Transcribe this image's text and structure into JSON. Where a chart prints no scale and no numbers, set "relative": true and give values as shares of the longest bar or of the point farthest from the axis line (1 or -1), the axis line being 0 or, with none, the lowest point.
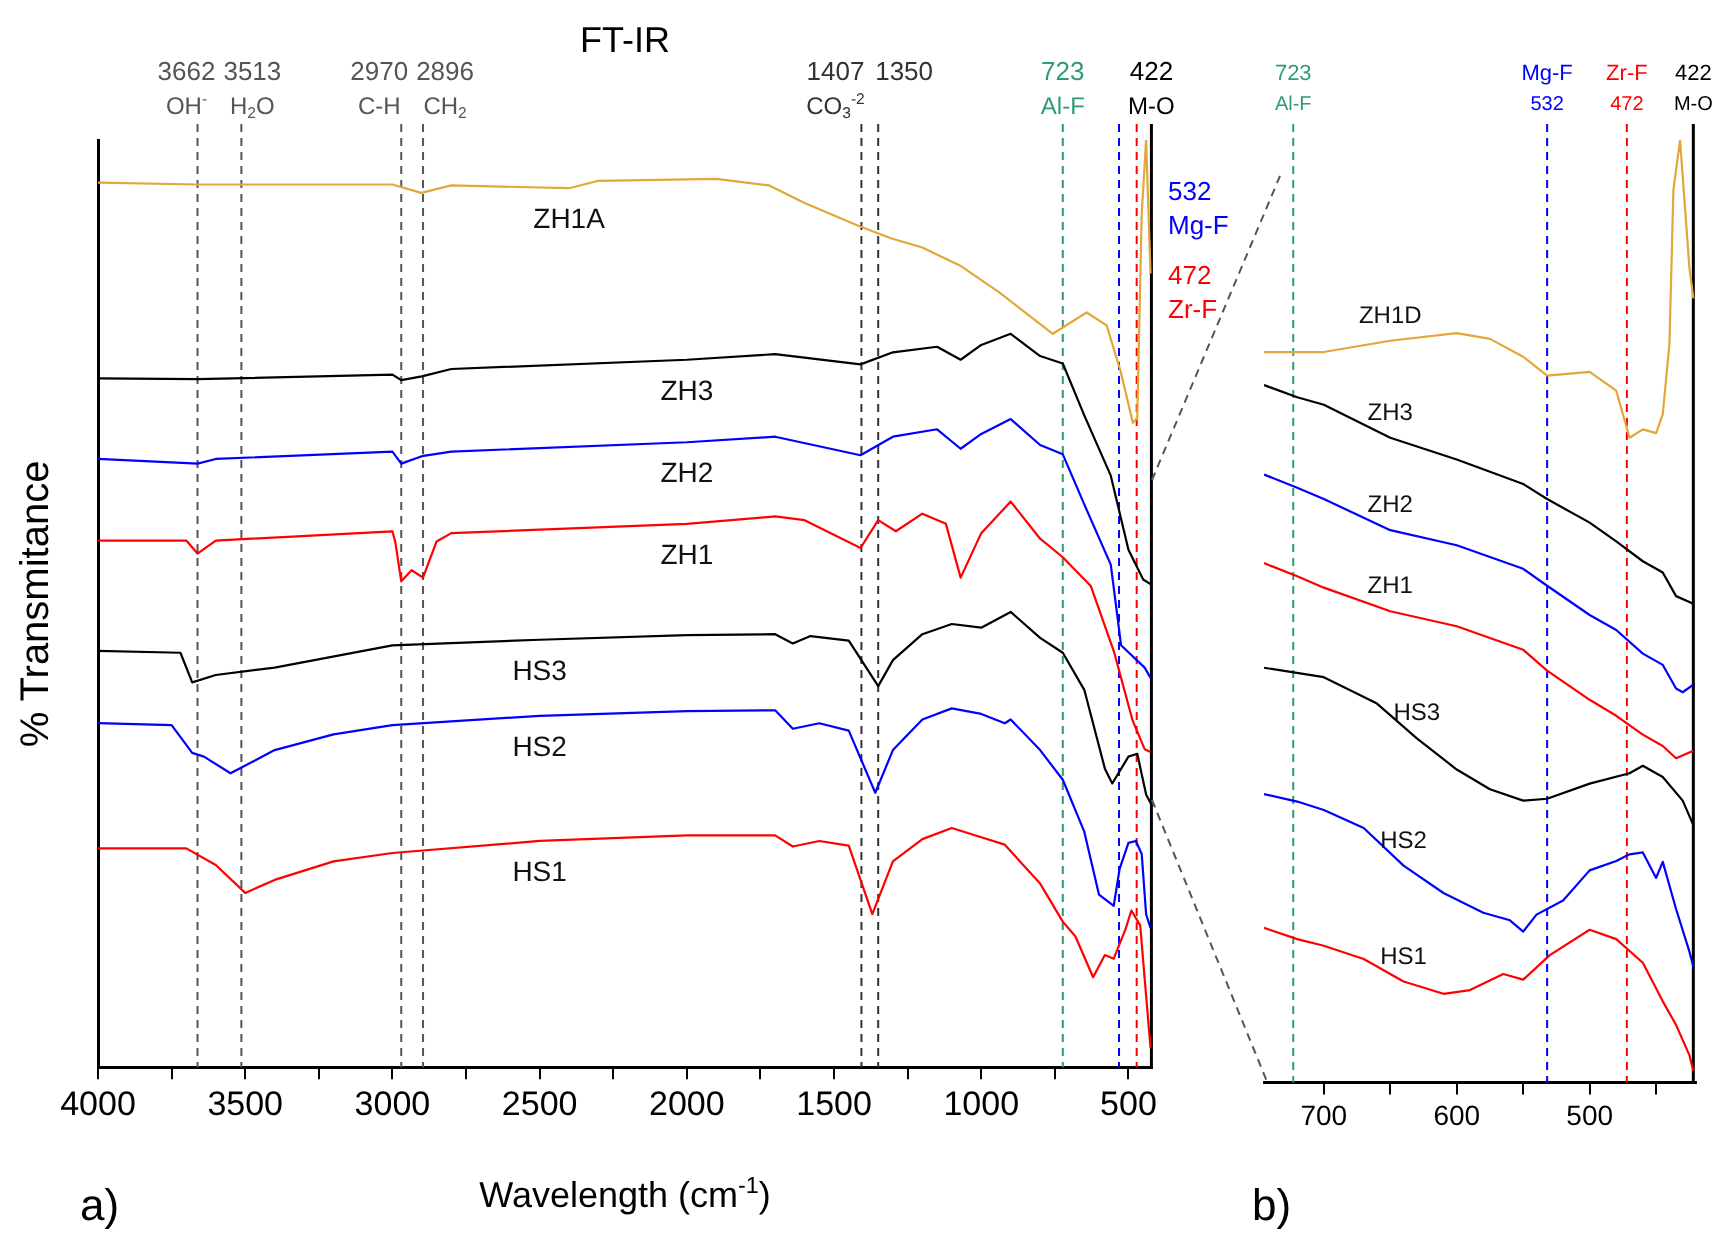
{
  "chart_data": [
    {
      "type": "line",
      "title": "FT-IR",
      "xlabel": "Wavelength (cm$^{-1}$)",
      "ylabel": "% Transmitance",
      "relative": true,
      "grid": false,
      "legend": false,
      "xlim": [
        4000,
        420
      ],
      "xticks": [
        4000,
        {
          "value": 3750,
          "label": null
        },
        3500,
        {
          "value": 3250,
          "label": null
        },
        3000,
        {
          "value": 2750,
          "label": null
        },
        2500,
        {
          "value": 2250,
          "label": null
        },
        2000,
        {
          "value": 1750,
          "label": null
        },
        1500,
        {
          "value": 1250,
          "label": null
        },
        1000,
        {
          "value": 750,
          "label": null
        },
        500
      ],
      "series": [
        {
          "name": "ZH1A",
          "color": "#e2a73b",
          "x": [
            4000,
            3662,
            3000,
            2902,
            2800,
            2400,
            2300,
            1900,
            1720,
            1600,
            1422,
            1307,
            1200,
            1069,
            940,
            757,
            642,
            574,
            527,
            485,
            470,
            455,
            440,
            425
          ],
          "values": [
            0.954,
            0.952,
            0.952,
            0.943,
            0.951,
            0.948,
            0.956,
            0.958,
            0.951,
            0.932,
            0.908,
            0.894,
            0.884,
            0.864,
            0.836,
            0.791,
            0.814,
            0.8,
            0.751,
            0.695,
            0.7,
            0.92,
            1.0,
            0.856
          ]
        },
        {
          "name": "ZH3",
          "color": "#000000",
          "x": [
            4000,
            3662,
            3000,
            2970,
            2900,
            2800,
            2000,
            1700,
            1410,
            1300,
            1150,
            1070,
            1000,
            900,
            800,
            723,
            650,
            560,
            500,
            450,
            425
          ],
          "values": [
            0.743,
            0.742,
            0.747,
            0.741,
            0.745,
            0.753,
            0.763,
            0.769,
            0.758,
            0.771,
            0.777,
            0.763,
            0.779,
            0.791,
            0.767,
            0.759,
            0.703,
            0.638,
            0.558,
            0.526,
            0.521
          ]
        },
        {
          "name": "ZH2",
          "color": "#0000ff",
          "x": [
            4000,
            3662,
            3600,
            3000,
            2970,
            2900,
            2800,
            2000,
            1700,
            1410,
            1300,
            1150,
            1070,
            1000,
            900,
            800,
            723,
            650,
            560,
            525,
            445,
            425
          ],
          "values": [
            0.656,
            0.651,
            0.656,
            0.664,
            0.651,
            0.659,
            0.664,
            0.674,
            0.68,
            0.66,
            0.68,
            0.688,
            0.667,
            0.683,
            0.699,
            0.671,
            0.661,
            0.607,
            0.542,
            0.455,
            0.431,
            0.42
          ]
        },
        {
          "name": "ZH1",
          "color": "#ff0000",
          "x": [
            4000,
            3700,
            3662,
            3600,
            3000,
            2990,
            2970,
            2935,
            2896,
            2850,
            2800,
            2000,
            1700,
            1600,
            1410,
            1350,
            1290,
            1200,
            1120,
            1070,
            1000,
            900,
            800,
            723,
            628,
            549,
            486,
            445,
            425
          ],
          "values": [
            0.568,
            0.568,
            0.554,
            0.568,
            0.578,
            0.566,
            0.524,
            0.536,
            0.528,
            0.567,
            0.576,
            0.586,
            0.594,
            0.59,
            0.56,
            0.59,
            0.578,
            0.597,
            0.586,
            0.528,
            0.576,
            0.61,
            0.57,
            0.55,
            0.519,
            0.448,
            0.374,
            0.343,
            0.34
          ]
        },
        {
          "name": "HS3",
          "color": "#000000",
          "x": [
            4000,
            3720,
            3680,
            3600,
            3400,
            3000,
            2500,
            2000,
            1700,
            1640,
            1580,
            1450,
            1350,
            1300,
            1200,
            1100,
            1000,
            900,
            800,
            723,
            650,
            580,
            555,
            500,
            470,
            440,
            425
          ],
          "values": [
            0.449,
            0.447,
            0.415,
            0.423,
            0.431,
            0.455,
            0.461,
            0.466,
            0.467,
            0.457,
            0.465,
            0.46,
            0.411,
            0.439,
            0.467,
            0.478,
            0.474,
            0.491,
            0.463,
            0.447,
            0.407,
            0.322,
            0.306,
            0.335,
            0.338,
            0.294,
            0.285
          ]
        },
        {
          "name": "HS2",
          "color": "#0000ff",
          "x": [
            4000,
            3750,
            3680,
            3640,
            3550,
            3400,
            3200,
            3000,
            2500,
            2000,
            1700,
            1640,
            1550,
            1450,
            1360,
            1300,
            1200,
            1100,
            1000,
            920,
            900,
            800,
            723,
            650,
            600,
            550,
            530,
            500,
            475,
            455,
            440,
            425
          ],
          "values": [
            0.371,
            0.369,
            0.339,
            0.335,
            0.317,
            0.342,
            0.359,
            0.369,
            0.379,
            0.384,
            0.385,
            0.365,
            0.371,
            0.363,
            0.296,
            0.342,
            0.375,
            0.387,
            0.381,
            0.371,
            0.375,
            0.342,
            0.31,
            0.254,
            0.186,
            0.174,
            0.214,
            0.242,
            0.244,
            0.23,
            0.165,
            0.15
          ]
        },
        {
          "name": "HS1",
          "color": "#ff0000",
          "x": [
            4000,
            3700,
            3600,
            3500,
            3400,
            3200,
            3000,
            2500,
            2000,
            1700,
            1640,
            1550,
            1450,
            1370,
            1300,
            1200,
            1100,
            1000,
            920,
            800,
            723,
            680,
            620,
            580,
            550,
            510,
            490,
            460,
            440,
            425
          ],
          "values": [
            0.236,
            0.236,
            0.218,
            0.188,
            0.202,
            0.222,
            0.231,
            0.244,
            0.25,
            0.25,
            0.238,
            0.244,
            0.239,
            0.165,
            0.222,
            0.246,
            0.258,
            0.248,
            0.24,
            0.198,
            0.157,
            0.141,
            0.097,
            0.121,
            0.117,
            0.149,
            0.169,
            0.153,
            0.077,
            0.021
          ]
        }
      ],
      "ref_lines": [
        {
          "axis": "x",
          "value": 3662,
          "label": "3662\nOH$^{-}$",
          "color": "#555555",
          "line_style": "dashed"
        },
        {
          "axis": "x",
          "value": 3513,
          "label": "3513\nH$_{2}$O",
          "color": "#555555",
          "line_style": "dashed"
        },
        {
          "axis": "x",
          "value": 2970,
          "label": "2970\nC-H",
          "color": "#555555",
          "line_style": "dashed"
        },
        {
          "axis": "x",
          "value": 2896,
          "label": "2896\nCH$_{2}$",
          "color": "#555555",
          "line_style": "dashed"
        },
        {
          "axis": "x",
          "value": 1407,
          "label": "1407\nCO$_{3}$$^{-2}$",
          "color": "#333333",
          "line_style": "dashed"
        },
        {
          "axis": "x",
          "value": 1350,
          "label": "1350",
          "color": "#333333",
          "line_style": "dashed"
        },
        {
          "axis": "x",
          "value": 723,
          "label": "723\nAl-F",
          "color": "#2e9b74",
          "line_style": "dashed"
        },
        {
          "axis": "x",
          "value": 532,
          "label": "532\nMg-F",
          "color": "#0000ff",
          "line_style": "dashed"
        },
        {
          "axis": "x",
          "value": 472,
          "label": "472\nZr-F",
          "color": "#ff0000",
          "line_style": "dashed"
        },
        {
          "axis": "x",
          "value": 422,
          "label": "422\nM-O",
          "color": "#000000",
          "line_style": "solid"
        }
      ],
      "annotations": [
        "a)"
      ]
    },
    {
      "type": "line",
      "relative": true,
      "grid": false,
      "legend": false,
      "xlim": [
        745,
        420
      ],
      "xticks": [
        700,
        {
          "value": 650,
          "label": null
        },
        600,
        {
          "value": 550,
          "label": null
        },
        500,
        {
          "value": 450,
          "label": null
        }
      ],
      "series": [
        {
          "name": "ZH1D",
          "color": "#e2a73b",
          "x": [
            745,
            700,
            650,
            600,
            575,
            550,
            532,
            500,
            480,
            470,
            460,
            450,
            445,
            440,
            437,
            432,
            425,
            422
          ],
          "values": [
            0.775,
            0.775,
            0.787,
            0.795,
            0.789,
            0.77,
            0.75,
            0.754,
            0.734,
            0.684,
            0.693,
            0.689,
            0.709,
            0.783,
            0.947,
            1.0,
            0.865,
            0.832
          ]
        },
        {
          "name": "ZH3",
          "color": "#000000",
          "x": [
            745,
            720,
            700,
            650,
            600,
            550,
            532,
            500,
            480,
            460,
            445,
            435,
            422
          ],
          "values": [
            0.74,
            0.727,
            0.719,
            0.684,
            0.661,
            0.635,
            0.619,
            0.594,
            0.574,
            0.553,
            0.541,
            0.516,
            0.508
          ]
        },
        {
          "name": "ZH2",
          "color": "#0000ff",
          "x": [
            745,
            720,
            700,
            650,
            600,
            550,
            532,
            500,
            480,
            460,
            445,
            435,
            430,
            422
          ],
          "values": [
            0.645,
            0.631,
            0.619,
            0.586,
            0.57,
            0.545,
            0.527,
            0.496,
            0.48,
            0.455,
            0.443,
            0.418,
            0.414,
            0.422
          ]
        },
        {
          "name": "ZH1",
          "color": "#ff0000",
          "x": [
            745,
            720,
            700,
            650,
            600,
            550,
            532,
            500,
            480,
            460,
            445,
            435,
            422
          ],
          "values": [
            0.551,
            0.537,
            0.525,
            0.5,
            0.484,
            0.459,
            0.437,
            0.406,
            0.389,
            0.369,
            0.357,
            0.344,
            0.352
          ]
        },
        {
          "name": "HS3",
          "color": "#000000",
          "x": [
            745,
            700,
            660,
            630,
            600,
            575,
            550,
            532,
            500,
            470,
            460,
            445,
            430,
            422
          ],
          "values": [
            0.44,
            0.43,
            0.402,
            0.365,
            0.332,
            0.311,
            0.299,
            0.301,
            0.317,
            0.328,
            0.336,
            0.324,
            0.299,
            0.273
          ]
        },
        {
          "name": "HS2",
          "color": "#0000ff",
          "x": [
            745,
            720,
            700,
            670,
            640,
            610,
            580,
            560,
            550,
            540,
            520,
            500,
            480,
            470,
            460,
            450,
            445,
            435,
            425,
            422
          ],
          "values": [
            0.306,
            0.298,
            0.289,
            0.27,
            0.23,
            0.201,
            0.18,
            0.172,
            0.16,
            0.178,
            0.193,
            0.225,
            0.235,
            0.242,
            0.244,
            0.217,
            0.234,
            0.184,
            0.139,
            0.123
          ]
        },
        {
          "name": "HS1",
          "color": "#ff0000",
          "x": [
            745,
            720,
            700,
            670,
            640,
            610,
            590,
            565,
            550,
            530,
            500,
            480,
            460,
            445,
            435,
            425,
            422
          ],
          "values": [
            0.164,
            0.152,
            0.145,
            0.131,
            0.107,
            0.094,
            0.098,
            0.115,
            0.109,
            0.135,
            0.162,
            0.152,
            0.127,
            0.086,
            0.061,
            0.029,
            0.012
          ]
        }
      ],
      "ref_lines": [
        {
          "axis": "x",
          "value": 723,
          "label": "723\nAl-F",
          "color": "#2e9b74",
          "line_style": "dashed"
        },
        {
          "axis": "x",
          "value": 532,
          "label": "Mg-F\n532",
          "color": "#0000ff",
          "line_style": "dashed"
        },
        {
          "axis": "x",
          "value": 472,
          "label": "Zr-F\n472",
          "color": "#ff0000",
          "line_style": "dashed"
        },
        {
          "axis": "x",
          "value": 422,
          "label": "422\nM-O",
          "color": "#000000",
          "line_style": "solid"
        }
      ],
      "annotations": [
        "b)"
      ]
    }
  ]
}
